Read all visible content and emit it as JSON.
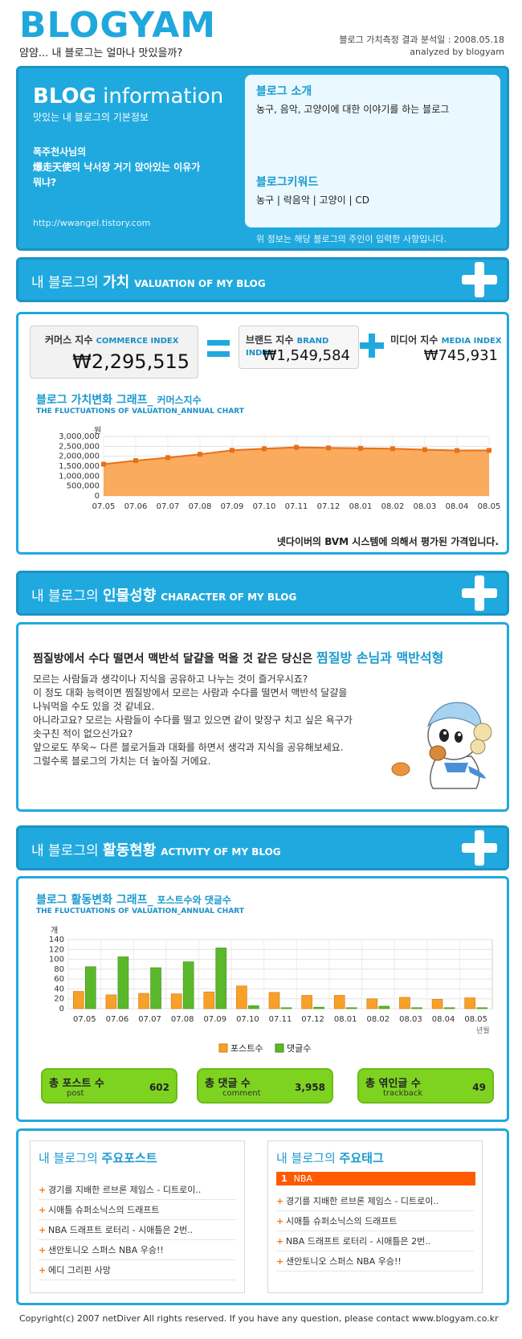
{
  "header": {
    "logo": "BLOGYAM",
    "tagline": "얌얌...  내 블로그는 얼마나 맛있을까?",
    "date_line": "블로그 가치측정 결과 분석일 : 2008.05.18",
    "analyzed_by": "analyzed by blogyam"
  },
  "info": {
    "title_a": "BLOG",
    "title_b": " information",
    "subtitle": "맛있는 내 블로그의 기본정보",
    "owner_line1": "폭주천사님의",
    "owner_line2": "爆走天使의 낙서장 거기 앉아있는 이유가",
    "owner_line3": "뭐냐?",
    "url": "http://wwangel.tistory.com",
    "intro_heading": "블로그 소개",
    "intro_text": "농구, 음악, 고양이에 대한 이야기를 하는 블로그",
    "keyword_heading": "블로그키워드",
    "keywords": "농구 | 락음악 | 고양이 | CD",
    "note": "위 정보는 해당 블로그의 주인이 입력한 사항입니다."
  },
  "valuation": {
    "bar_prefix": "내 블로그의 ",
    "bar_bold": "가치",
    "bar_en": "VALUATION OF MY BLOG",
    "commerce_label": "커머스 지수",
    "commerce_en": "COMMERCE INDEX",
    "commerce_value": "₩2,295,515",
    "brand_label": "브랜드 지수",
    "brand_en": "BRAND INDEX",
    "brand_value": "₩1,549,584",
    "media_label": "미디어 지수",
    "media_en": "MEDIA INDEX",
    "media_value": "₩745,931",
    "chart_title": "블로그 가치변화 그래프_",
    "chart_title_small": "커머스지수",
    "chart_sub": "THE FLUCTUATIONS OF VALUATION_ANNUAL CHART",
    "footnote": "넷다이버의 BVM 시스템에 의해서 평가된 가격입니다."
  },
  "chart_data": [
    {
      "type": "area",
      "title": "블로그 가치변화 그래프_ 커머스지수",
      "ylabel": "원",
      "xlabel": "",
      "categories": [
        "07.05",
        "07.06",
        "07.07",
        "07.08",
        "07.09",
        "07.10",
        "07.11",
        "07.12",
        "08.01",
        "08.02",
        "08.03",
        "08.04",
        "08.05"
      ],
      "values": [
        1600000,
        1780000,
        1930000,
        2100000,
        2300000,
        2380000,
        2450000,
        2420000,
        2400000,
        2380000,
        2330000,
        2290000,
        2295515
      ],
      "ylim": [
        0,
        3000000
      ],
      "yticks": [
        "3,000,000",
        "2,500,000",
        "2,000,000",
        "1,500,000",
        "1,000,000",
        "500,000",
        "0"
      ],
      "grid": true,
      "colors": {
        "fill": "#f9a24b",
        "line": "#e8701a"
      }
    },
    {
      "type": "bar",
      "title": "블로그 활동변화 그래프_ 포스트수와 댓글수",
      "ylabel": "개",
      "xlabel": "년월",
      "categories": [
        "07.05",
        "07.06",
        "07.07",
        "07.08",
        "07.09",
        "07.10",
        "07.11",
        "07.12",
        "08.01",
        "08.02",
        "08.03",
        "08.04",
        "08.05"
      ],
      "series": [
        {
          "name": "포스트수",
          "values": [
            35,
            28,
            31,
            30,
            34,
            46,
            33,
            27,
            27,
            20,
            23,
            19,
            22
          ]
        },
        {
          "name": "댓글수",
          "values": [
            85,
            105,
            83,
            95,
            123,
            6,
            2,
            3,
            2,
            5,
            2,
            2,
            2
          ]
        }
      ],
      "ylim": [
        0,
        140
      ],
      "yticks": [
        "140",
        "120",
        "100",
        "80",
        "60",
        "40",
        "20",
        "0"
      ],
      "legend": "bottom",
      "grid": true,
      "colors": {
        "post": "#f7a02a",
        "comment": "#5cb82b"
      }
    }
  ],
  "character": {
    "bar_prefix": "내 블로그의 ",
    "bar_bold": "인물성향",
    "bar_en": "CHARACTER OF MY BLOG",
    "headline": "찜질방에서 수다 떨면서 맥반석 달걀을 먹을 것 같은 당신은 ",
    "headline_hl": "찜질방 손님과 맥반석형",
    "lines": [
      "모르는 사람들과 생각이나 지식을 공유하고 나누는 것이 즐거우시죠?",
      "이 정도 대화 능력이면 찜질방에서 모르는 사람과 수다를 떨면서 맥반석 달걀을",
      "나눠먹을 수도 있을 것 같네요.",
      "아니라고요? 모르는 사람들이 수다를 떨고 있으면 같이 맞장구 치고 싶은 욕구가",
      "솟구친 적이 없으신가요?",
      "앞으로도 쭈욱~ 다른 블로거들과 대화를 하면서 생각과 지식을 공유해보세요.",
      "그럴수록 블로그의 가치는 더 높아질 거에요."
    ]
  },
  "activity": {
    "bar_prefix": "내 블로그의 ",
    "bar_bold": "활동현황",
    "bar_en": "ACTIVITY OF MY BLOG",
    "chart_title": "블로그 활동변화 그래프_",
    "chart_title_small": "포스트수와 댓글수",
    "chart_sub": "THE FLUCTUATIONS OF VALUATION_ANNUAL CHART",
    "total_post_label": "총 포스트 수",
    "total_post_en": "post",
    "total_post_value": "602",
    "total_comment_label": "총 댓글 수",
    "total_comment_en": "comment",
    "total_comment_value": "3,958",
    "total_trackback_label": "총 엮인글 수",
    "total_trackback_en": "trackback",
    "total_trackback_value": "49"
  },
  "top_posts": {
    "title_prefix": "내 블로그의 ",
    "title_bold": "주요포스트",
    "items": [
      "경기를 지배한 르브론 제임스 - 디트로이..",
      "시애틀 슈퍼소닉스의 드래프트",
      "NBA 드래프트 로터리 - 시애틀은 2번..",
      "샌안토니오 스퍼스 NBA 우승!!",
      "에디 그리핀 사망"
    ]
  },
  "top_tags": {
    "title_prefix": "내 블로그의 ",
    "title_bold": "주요태그",
    "rank": "1",
    "tag": "NBA",
    "items": [
      "경기를 지배한 르브론 제임스 - 디트로이..",
      "시애틀 슈퍼소닉스의 드래프트",
      "NBA 드래프트 로터리 - 시애틀은 2번..",
      "샌안토니오 스퍼스 NBA 우승!!"
    ]
  },
  "footer": "Copyright(c) 2007 netDiver All rights reserved. If you have any question, please contact www.blogyam.co.kr"
}
